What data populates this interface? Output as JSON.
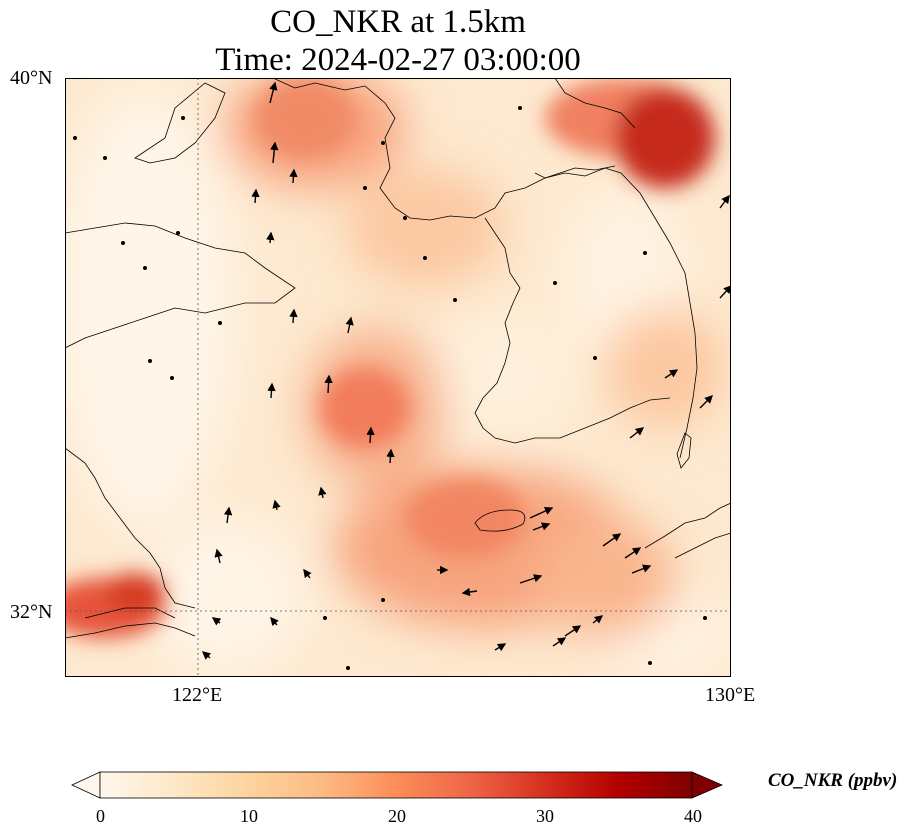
{
  "title": {
    "line1": "CO_NKR at 1.5km",
    "line2": "Time: 2024-02-27 03:00:00"
  },
  "map": {
    "lat_labels": [
      "40°N",
      "32°N"
    ],
    "lon_labels": [
      "122°E",
      "130°E"
    ],
    "lon_range": [
      120,
      130
    ],
    "lat_range": [
      31,
      40
    ],
    "gridlines": {
      "lon": 122,
      "lat": 32,
      "style": "dotted"
    }
  },
  "colorbar": {
    "label": "CO_NKR (ppbv)",
    "ticks": [
      "0",
      "10",
      "20",
      "30",
      "40"
    ],
    "range": [
      0,
      40
    ],
    "extend": "both",
    "colormap": [
      "#fff7ec",
      "#fee8c8",
      "#fdd49e",
      "#fdbb84",
      "#fc8d59",
      "#ef6548",
      "#d7301f",
      "#b30000",
      "#7f0000"
    ]
  }
}
